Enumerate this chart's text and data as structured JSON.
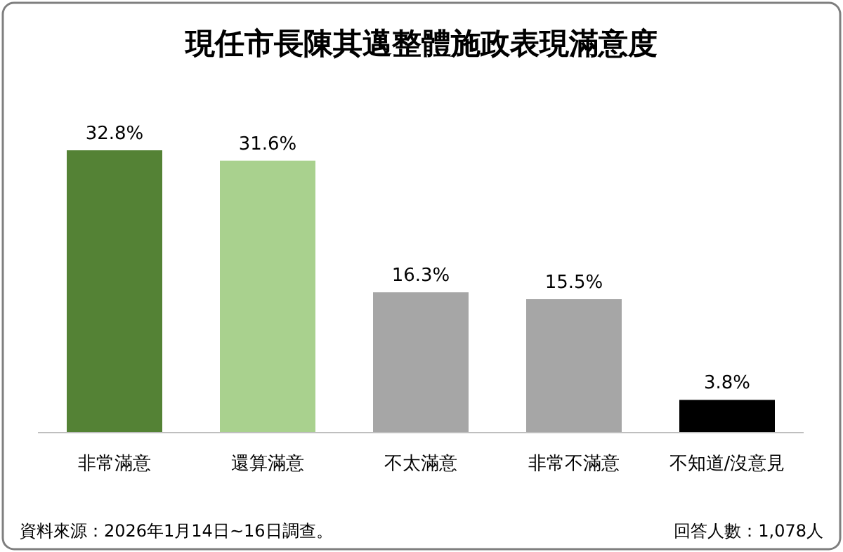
{
  "chart_data": {
    "type": "bar",
    "title": "現任市長陳其邁整體施政表現滿意度",
    "categories": [
      "非常滿意",
      "還算滿意",
      "不太滿意",
      "非常不滿意",
      "不知道/沒意見"
    ],
    "values": [
      32.8,
      31.6,
      16.3,
      15.5,
      3.8
    ],
    "colors": [
      "#548235",
      "#a9d18e",
      "#a6a6a6",
      "#a6a6a6",
      "#000000"
    ],
    "value_labels": [
      "32.8%",
      "31.6%",
      "16.3%",
      "15.5%",
      "3.8%"
    ],
    "annotations": [
      "資料來源：2026年1月14日~16日調查。",
      "回答人數：1,078人"
    ]
  }
}
